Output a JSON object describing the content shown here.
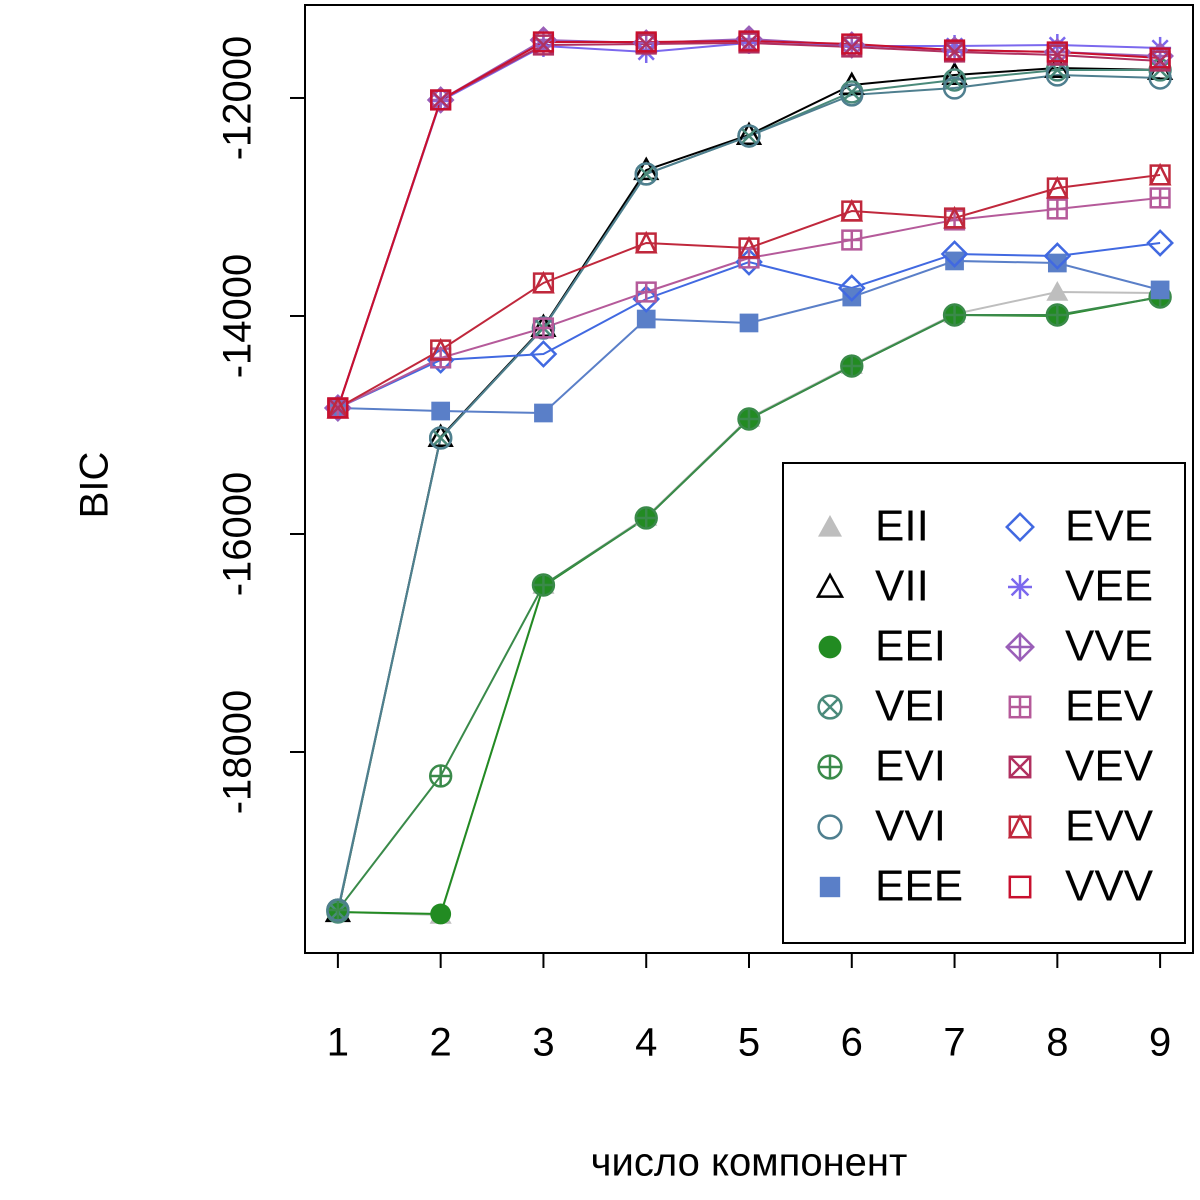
{
  "chart_data": {
    "type": "line",
    "xlabel": "число компонент",
    "ylabel": "BIC",
    "x": [
      1,
      2,
      3,
      4,
      5,
      6,
      7,
      8,
      9
    ],
    "xlim": [
      0.68,
      9.32
    ],
    "xticks": [
      1,
      2,
      3,
      4,
      5,
      6,
      7,
      8,
      9
    ],
    "ylim": [
      -19844,
      -11147
    ],
    "yticks": [
      -18000,
      -16000,
      -14000,
      -12000
    ],
    "legend": "bottomright",
    "series": [
      {
        "name": "EII",
        "color": "#bebebe",
        "marker": "triangle-filled",
        "values": [
          -19468,
          -19495,
          -16468,
          -15844,
          -14936,
          -14450,
          -13982,
          -13780,
          -13789
        ]
      },
      {
        "name": "VII",
        "color": "#000000",
        "marker": "triangle",
        "values": [
          -19468,
          -15110,
          -14101,
          -12661,
          -12339,
          -11881,
          -11789,
          -11725,
          -11743
        ]
      },
      {
        "name": "EEI",
        "color": "#228b22",
        "marker": "circle-filled",
        "values": [
          -19468,
          -19486,
          -16477,
          -15853,
          -14945,
          -14459,
          -13991,
          -14000,
          -13826
        ]
      },
      {
        "name": "VEI",
        "color": "#4a8a7a",
        "marker": "circle-cross",
        "values": [
          -19468,
          -15119,
          -14110,
          -12697,
          -12349,
          -11945,
          -11835,
          -11743,
          -11743
        ]
      },
      {
        "name": "EVI",
        "color": "#3a8a4a",
        "marker": "circle-plus",
        "values": [
          -19450,
          -18220,
          -16468,
          -15853,
          -14945,
          -14459,
          -13991,
          -13991,
          -13826
        ]
      },
      {
        "name": "VVI",
        "color": "#4f7f8f",
        "marker": "circle",
        "values": [
          -19450,
          -15119,
          -14110,
          -12697,
          -12349,
          -11972,
          -11908,
          -11789,
          -11817
        ]
      },
      {
        "name": "EEE",
        "color": "#5a7fc8",
        "marker": "square-filled",
        "values": [
          -14844,
          -14872,
          -14890,
          -14028,
          -14064,
          -13826,
          -13495,
          -13514,
          -13761
        ]
      },
      {
        "name": "EVE",
        "color": "#4169e1",
        "marker": "diamond",
        "values": [
          -14844,
          -14404,
          -14349,
          -13844,
          -13505,
          -13743,
          -13431,
          -13450,
          -13330
        ]
      },
      {
        "name": "VEE",
        "color": "#7b68ee",
        "marker": "asterisk",
        "values": [
          -14844,
          -12028,
          -11523,
          -11578,
          -11495,
          -11523,
          -11523,
          -11514,
          -11541
        ]
      },
      {
        "name": "VVE",
        "color": "#9a5fb8",
        "marker": "diamond-plus",
        "values": [
          -14844,
          -12018,
          -11468,
          -11495,
          -11459,
          -11514,
          -11560,
          -11578,
          -11615
        ]
      },
      {
        "name": "EEV",
        "color": "#b55a9a",
        "marker": "square-plus",
        "values": [
          -14844,
          -14385,
          -14110,
          -13780,
          -13468,
          -13303,
          -13119,
          -13018,
          -12917
        ]
      },
      {
        "name": "VEV",
        "color": "#b03060",
        "marker": "square-cross",
        "values": [
          -14844,
          -12018,
          -11514,
          -11505,
          -11495,
          -11532,
          -11578,
          -11606,
          -11661
        ]
      },
      {
        "name": "EVV",
        "color": "#c0283c",
        "marker": "square-triangle",
        "values": [
          -14844,
          -14312,
          -13697,
          -13330,
          -13376,
          -13037,
          -13101,
          -12826,
          -12706
        ]
      },
      {
        "name": "VVV",
        "color": "#c8102e",
        "marker": "square",
        "values": [
          -14844,
          -12018,
          -11486,
          -11486,
          -11477,
          -11505,
          -11560,
          -11578,
          -11633
        ]
      }
    ]
  }
}
